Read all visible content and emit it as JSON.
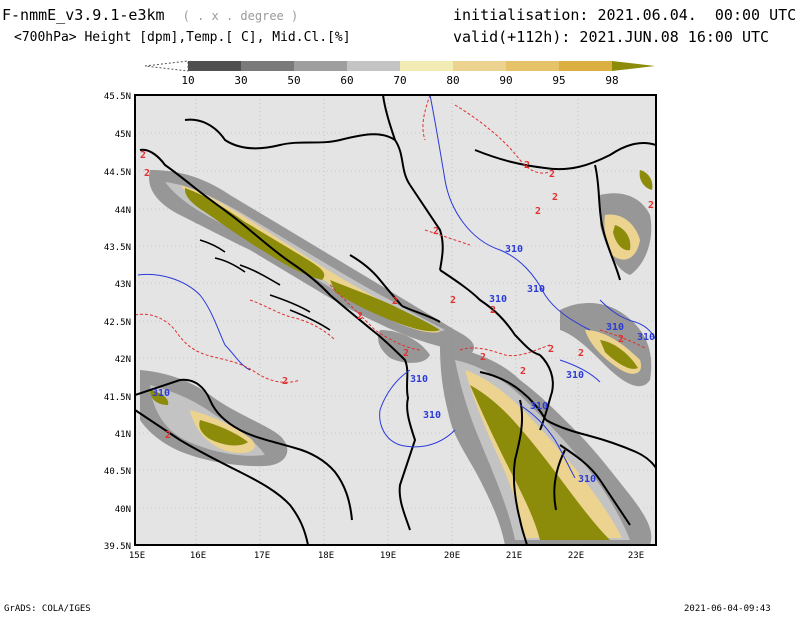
{
  "header": {
    "model_name": "F-nmmE_v3.9.1-e3km",
    "model_suffix": "( . x . degree )",
    "variables": "<700hPa> Height [dpm],Temp.[ C], Mid.Cl.[%]",
    "initialisation": "initialisation: 2021.06.04.  00:00 UTC",
    "valid": "valid(+112h): 2021.JUN.08 16:00 UTC"
  },
  "colorbar": {
    "labels": [
      "10",
      "30",
      "50",
      "60",
      "70",
      "80",
      "90",
      "95",
      "98"
    ],
    "colors": [
      "#505050",
      "#7a7a7a",
      "#9e9e9e",
      "#c4c4c4",
      "#f2ecb4",
      "#ecd490",
      "#e6c268",
      "#dcb040",
      "#8c8c0a"
    ]
  },
  "map": {
    "lat_labels": [
      "45.5N",
      "45N",
      "44.5N",
      "44N",
      "43.5N",
      "43N",
      "42.5N",
      "42N",
      "41.5N",
      "41N",
      "40.5N",
      "40N",
      "39.5N"
    ],
    "lon_labels": [
      "15E",
      "16E",
      "17E",
      "18E",
      "19E",
      "20E",
      "21E",
      "22E",
      "23E"
    ],
    "height_contour_labels": [
      "310",
      "310",
      "310",
      "310",
      "310",
      "310",
      "310",
      "310",
      "310",
      "310",
      "310"
    ],
    "temp_contour_labels": [
      "2",
      "2",
      "2",
      "2",
      "2",
      "2",
      "2",
      "2",
      "2",
      "2",
      "2",
      "2",
      "2",
      "2",
      "2",
      "2",
      "2",
      "2",
      "2",
      "2"
    ],
    "colors": {
      "background": "#e4e4e4",
      "height_contour": "#2a3ad8",
      "temp_contour": "#e03030",
      "coast_border": "#000000",
      "cloud_gray": "#8a8a8a",
      "cloud_light": "#c8c8c8",
      "cloud_yellow": "#ecd490",
      "cloud_olive": "#8c8c0a"
    }
  },
  "footer": {
    "left": "GrADS: COLA/IGES",
    "right": "2021-06-04-09:43"
  }
}
